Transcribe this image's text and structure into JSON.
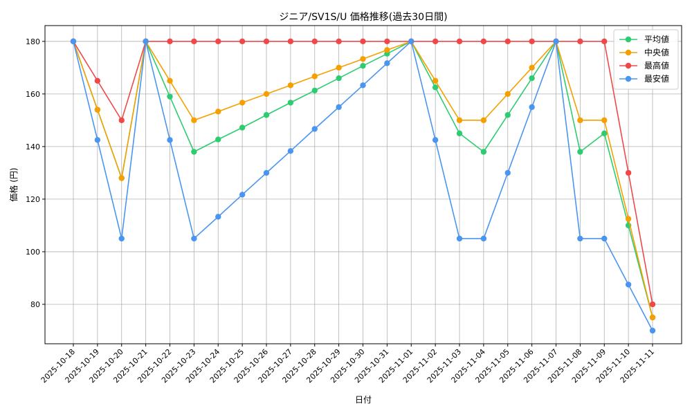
{
  "chart_data": {
    "type": "line",
    "title": "ジニア/SV1S/U 価格推移(過去30日間)",
    "xlabel": "日付",
    "ylabel": "価格 (円)",
    "ylim": [
      65,
      186
    ],
    "yticks": [
      80,
      100,
      120,
      140,
      160,
      180
    ],
    "grid": true,
    "legend_position": "top-right",
    "categories": [
      "2025-10-18",
      "2025-10-19",
      "2025-10-20",
      "2025-10-21",
      "2025-10-22",
      "2025-10-23",
      "2025-10-24",
      "2025-10-25",
      "2025-10-26",
      "2025-10-27",
      "2025-10-28",
      "2025-10-29",
      "2025-10-30",
      "2025-10-31",
      "2025-11-01",
      "2025-11-02",
      "2025-11-03",
      "2025-11-04",
      "2025-11-05",
      "2025-11-06",
      "2025-11-07",
      "2025-11-08",
      "2025-11-09",
      "2025-11-10",
      "2025-11-11"
    ],
    "series": [
      {
        "name": "平均値",
        "color": "#2ecc71",
        "values": [
          180,
          154,
          128,
          180,
          159,
          138,
          142.7,
          147.2,
          152,
          156.7,
          161.3,
          166,
          170.7,
          175.3,
          180,
          162.5,
          145,
          138,
          152,
          166,
          180,
          138,
          145,
          110,
          75
        ]
      },
      {
        "name": "中央値",
        "color": "#f5a000",
        "values": [
          180,
          154,
          128,
          180,
          165,
          150,
          153.3,
          156.7,
          160,
          163.3,
          166.7,
          170,
          173.3,
          176.7,
          180,
          165,
          150,
          150,
          160,
          170,
          180,
          150,
          150,
          112.5,
          75
        ]
      },
      {
        "name": "最高値",
        "color": "#f04848",
        "values": [
          180,
          165,
          150,
          180,
          180,
          180,
          180,
          180,
          180,
          180,
          180,
          180,
          180,
          180,
          180,
          180,
          180,
          180,
          180,
          180,
          180,
          180,
          180,
          130,
          80
        ]
      },
      {
        "name": "最安値",
        "color": "#4a95f0",
        "values": [
          180,
          142.5,
          105,
          180,
          142.5,
          105,
          113.3,
          121.7,
          130,
          138.3,
          146.7,
          155,
          163.3,
          171.7,
          180,
          142.5,
          105,
          105,
          130,
          155,
          180,
          105,
          105,
          87.5,
          70
        ]
      }
    ]
  }
}
